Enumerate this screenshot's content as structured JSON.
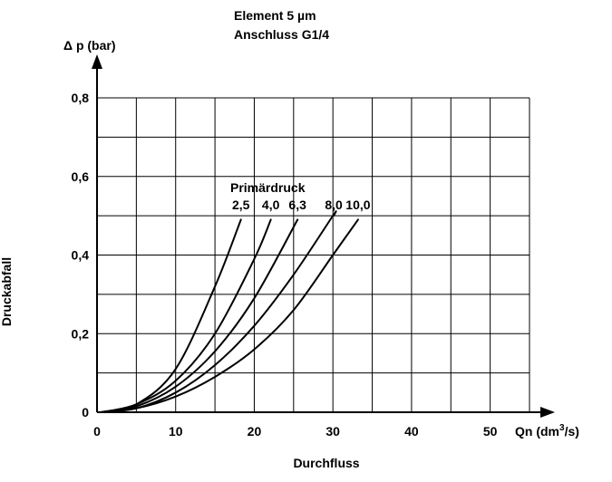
{
  "chart_data": {
    "type": "line",
    "title_lines": [
      "Element 5 µm",
      "Anschluss G1/4"
    ],
    "y_unit_label": "Δ p (bar)",
    "ylabel": "Druckabfall",
    "x_unit_label_prefix": "Qn (dm",
    "x_unit_label_sup": "3",
    "x_unit_label_suffix": "/s)",
    "xlabel": "Durchfluss",
    "xlim": [
      0,
      55
    ],
    "ylim": [
      0,
      0.8
    ],
    "x_ticks": [
      0,
      10,
      20,
      30,
      40,
      50
    ],
    "x_tick_labels": [
      "0",
      "10",
      "20",
      "30",
      "40",
      "50"
    ],
    "y_ticks": [
      0,
      0.2,
      0.4,
      0.6,
      0.8
    ],
    "y_tick_labels": [
      "0",
      "0,2",
      "0,4",
      "0,6",
      "0,8"
    ],
    "x_gridlines": [
      0,
      5,
      10,
      15,
      20,
      25,
      30,
      35,
      40,
      45,
      50,
      55
    ],
    "y_gridlines": [
      0,
      0.1,
      0.2,
      0.3,
      0.4,
      0.5,
      0.6,
      0.7,
      0.8
    ],
    "grid": true,
    "legend_title": "Primärdruck",
    "series": [
      {
        "name": "2,5",
        "x": [
          0.5,
          5,
          10,
          15,
          18.3
        ],
        "y": [
          0.0,
          0.02,
          0.11,
          0.32,
          0.49
        ]
      },
      {
        "name": "4,0",
        "x": [
          0.5,
          5,
          10,
          15,
          20,
          22.1
        ],
        "y": [
          0.0,
          0.02,
          0.08,
          0.2,
          0.39,
          0.49
        ]
      },
      {
        "name": "6,3",
        "x": [
          0.5,
          5,
          10,
          15,
          20,
          25.5
        ],
        "y": [
          0.0,
          0.015,
          0.065,
          0.155,
          0.29,
          0.49
        ]
      },
      {
        "name": "8,0",
        "x": [
          0.5,
          5,
          10,
          15,
          20,
          25,
          30,
          30.1
        ],
        "y": [
          0.0,
          0.01,
          0.05,
          0.12,
          0.22,
          0.35,
          0.5,
          0.5
        ]
      },
      {
        "name": "10,0",
        "x": [
          0.5,
          5,
          10,
          15,
          20,
          25,
          30,
          33.2
        ],
        "y": [
          0.0,
          0.01,
          0.04,
          0.09,
          0.16,
          0.26,
          0.4,
          0.49
        ]
      }
    ]
  }
}
